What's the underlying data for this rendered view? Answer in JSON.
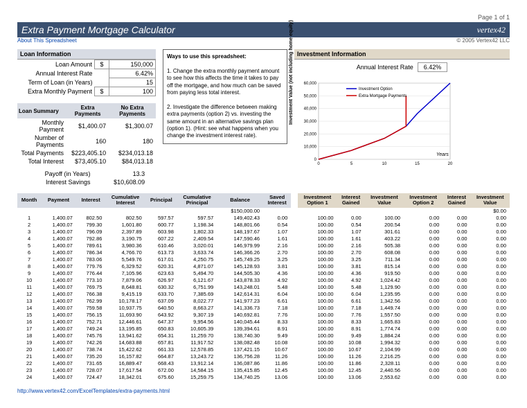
{
  "page_header": {
    "page_num": "Page 1 of 1"
  },
  "title": "Extra Payment Mortgage Calculator",
  "logo_text": "vertex42",
  "sub_link": "About This Spreadsheet",
  "copyright": "© 2005 Vertex42 LLC",
  "loan_info": {
    "header": "Loan Information",
    "rows": [
      {
        "label": "Loan Amount",
        "sym": "$",
        "value": "150,000"
      },
      {
        "label": "Annual Interest Rate",
        "sym": "",
        "value": "6.42%"
      },
      {
        "label": "Term of Loan (in Years)",
        "sym": "",
        "value": "15"
      },
      {
        "label": "Extra Monthly Payment",
        "sym": "$",
        "value": "100"
      }
    ]
  },
  "loan_summary": {
    "header": "Loan Summary",
    "col1": "Extra Payments",
    "col2": "No Extra Payments",
    "rows": [
      {
        "label": "Monthly Payment",
        "v1": "$1,400.07",
        "v2": "$1,300.07"
      },
      {
        "label": "Number of Payments",
        "v1": "160",
        "v2": "180"
      },
      {
        "label": "Total Payments",
        "v1": "$223,405.10",
        "v2": "$234,013.18"
      },
      {
        "label": "Total Interest",
        "v1": "$73,405.10",
        "v2": "$84,013.18"
      }
    ],
    "extra_rows": [
      {
        "label": "Payoff (in Years)",
        "v": "13.3"
      },
      {
        "label": "Interest Savings",
        "v": "$10,608.09"
      }
    ]
  },
  "ways": {
    "header": "Ways to use this spreadsheet:",
    "p1": "1. Change the extra monthly payment amount to see how this affects the time it takes to pay off the mortgage, and how much can be saved from paying less total interest.",
    "p2": "2. Investigate the difference between making extra payments (option 2) vs. investing the same amount in an alternative savings plan (option 1). (Hint: see what happens when you change the investment interest rate)."
  },
  "invest_info": {
    "header": "Investment Information",
    "rate_label": "Annual Interest Rate",
    "rate_value": "6.42%"
  },
  "chart": {
    "ylabel": "Investment Value (not including home equity)",
    "xlabel": "Years",
    "legend1": "Investment Option",
    "legend2": "Extra Mortgage Payments",
    "color1": "#0000cc",
    "color2": "#cc0000",
    "xmax": 20,
    "ymax": 60000,
    "yticks": [
      0,
      10000,
      20000,
      30000,
      40000,
      50000,
      60000
    ],
    "xticks": [
      0,
      5,
      10,
      15,
      20
    ],
    "series1": [
      [
        0,
        0
      ],
      [
        5,
        7000
      ],
      [
        10,
        16500
      ],
      [
        13.3,
        26000
      ],
      [
        15,
        36000
      ],
      [
        20,
        60000
      ]
    ],
    "series2": [
      [
        0,
        0
      ],
      [
        5,
        7000
      ],
      [
        10,
        16500
      ],
      [
        13.3,
        26000
      ],
      [
        13.3,
        50000
      ]
    ]
  },
  "amort": {
    "headers_left": [
      "Month",
      "Payment",
      "Interest",
      "Cumulative Interest",
      "Principal",
      "Cumulative Principal",
      "Balance",
      "Saved Interest"
    ],
    "headers_right": [
      "Investment Option 1",
      "Interest Gained",
      "Investment Value",
      "Investment Option 2",
      "Interest Gained",
      "Investment Value"
    ],
    "starting_balance": "$150,000.00",
    "starting_inv": "$0.00",
    "rows": [
      {
        "m": "1",
        "pay": "1,400.07",
        "int": "802.50",
        "cint": "802.50",
        "prin": "597.57",
        "cprin": "597.57",
        "bal": "149,402.43",
        "sint": "0.00",
        "io1": "100.00",
        "ig1": "0.00",
        "iv1": "100.00",
        "io2": "0.00",
        "ig2": "0.00",
        "iv2": "0.00"
      },
      {
        "m": "2",
        "pay": "1,400.07",
        "int": "799.30",
        "cint": "1,601.80",
        "prin": "600.77",
        "cprin": "1,198.34",
        "bal": "148,801.66",
        "sint": "0.54",
        "io1": "100.00",
        "ig1": "0.54",
        "iv1": "200.54",
        "io2": "0.00",
        "ig2": "0.00",
        "iv2": "0.00"
      },
      {
        "m": "3",
        "pay": "1,400.07",
        "int": "796.09",
        "cint": "2,397.89",
        "prin": "603.98",
        "cprin": "1,802.33",
        "bal": "148,197.67",
        "sint": "1.07",
        "io1": "100.00",
        "ig1": "1.07",
        "iv1": "301.61",
        "io2": "0.00",
        "ig2": "0.00",
        "iv2": "0.00"
      },
      {
        "m": "4",
        "pay": "1,400.07",
        "int": "792.86",
        "cint": "3,190.75",
        "prin": "607.22",
        "cprin": "2,409.54",
        "bal": "147,590.46",
        "sint": "1.61",
        "io1": "100.00",
        "ig1": "1.61",
        "iv1": "403.22",
        "io2": "0.00",
        "ig2": "0.00",
        "iv2": "0.00"
      },
      {
        "m": "5",
        "pay": "1,400.07",
        "int": "789.61",
        "cint": "3,980.36",
        "prin": "610.46",
        "cprin": "3,020.01",
        "bal": "146,979.99",
        "sint": "2.16",
        "io1": "100.00",
        "ig1": "2.16",
        "iv1": "505.38",
        "io2": "0.00",
        "ig2": "0.00",
        "iv2": "0.00"
      },
      {
        "m": "6",
        "pay": "1,400.07",
        "int": "786.34",
        "cint": "4,766.70",
        "prin": "613.73",
        "cprin": "3,633.74",
        "bal": "146,366.26",
        "sint": "2.70",
        "io1": "100.00",
        "ig1": "2.70",
        "iv1": "608.08",
        "io2": "0.00",
        "ig2": "0.00",
        "iv2": "0.00"
      },
      {
        "m": "7",
        "pay": "1,400.07",
        "int": "783.06",
        "cint": "5,549.76",
        "prin": "617.01",
        "cprin": "4,250.75",
        "bal": "145,749.25",
        "sint": "3.25",
        "io1": "100.00",
        "ig1": "3.25",
        "iv1": "711.34",
        "io2": "0.00",
        "ig2": "0.00",
        "iv2": "0.00"
      },
      {
        "m": "8",
        "pay": "1,400.07",
        "int": "779.76",
        "cint": "6,329.52",
        "prin": "620.31",
        "cprin": "4,871.07",
        "bal": "145,128.93",
        "sint": "3.81",
        "io1": "100.00",
        "ig1": "3.81",
        "iv1": "815.14",
        "io2": "0.00",
        "ig2": "0.00",
        "iv2": "0.00"
      },
      {
        "m": "9",
        "pay": "1,400.07",
        "int": "776.44",
        "cint": "7,105.96",
        "prin": "623.63",
        "cprin": "5,494.70",
        "bal": "144,505.30",
        "sint": "4.36",
        "io1": "100.00",
        "ig1": "4.36",
        "iv1": "919.50",
        "io2": "0.00",
        "ig2": "0.00",
        "iv2": "0.00"
      },
      {
        "m": "10",
        "pay": "1,400.07",
        "int": "773.10",
        "cint": "7,879.06",
        "prin": "626.97",
        "cprin": "6,121.67",
        "bal": "143,878.33",
        "sint": "4.92",
        "io1": "100.00",
        "ig1": "4.92",
        "iv1": "1,024.42",
        "io2": "0.00",
        "ig2": "0.00",
        "iv2": "0.00"
      },
      {
        "m": "11",
        "pay": "1,400.07",
        "int": "769.75",
        "cint": "8,648.81",
        "prin": "630.32",
        "cprin": "6,751.99",
        "bal": "143,248.01",
        "sint": "5.48",
        "io1": "100.00",
        "ig1": "5.48",
        "iv1": "1,129.90",
        "io2": "0.00",
        "ig2": "0.00",
        "iv2": "0.00"
      },
      {
        "m": "12",
        "pay": "1,400.07",
        "int": "766.38",
        "cint": "9,415.19",
        "prin": "633.70",
        "cprin": "7,385.69",
        "bal": "142,614.31",
        "sint": "6.04",
        "io1": "100.00",
        "ig1": "6.04",
        "iv1": "1,235.95",
        "io2": "0.00",
        "ig2": "0.00",
        "iv2": "0.00"
      },
      {
        "m": "13",
        "pay": "1,400.07",
        "int": "762.99",
        "cint": "10,178.17",
        "prin": "637.09",
        "cprin": "8,022.77",
        "bal": "141,977.23",
        "sint": "6.61",
        "io1": "100.00",
        "ig1": "6.61",
        "iv1": "1,342.56",
        "io2": "0.00",
        "ig2": "0.00",
        "iv2": "0.00"
      },
      {
        "m": "14",
        "pay": "1,400.07",
        "int": "759.58",
        "cint": "10,937.75",
        "prin": "640.50",
        "cprin": "8,663.27",
        "bal": "141,336.73",
        "sint": "7.18",
        "io1": "100.00",
        "ig1": "7.18",
        "iv1": "1,449.74",
        "io2": "0.00",
        "ig2": "0.00",
        "iv2": "0.00"
      },
      {
        "m": "15",
        "pay": "1,400.07",
        "int": "756.15",
        "cint": "11,693.90",
        "prin": "643.92",
        "cprin": "9,307.19",
        "bal": "140,692.81",
        "sint": "7.76",
        "io1": "100.00",
        "ig1": "7.76",
        "iv1": "1,557.50",
        "io2": "0.00",
        "ig2": "0.00",
        "iv2": "0.00"
      },
      {
        "m": "16",
        "pay": "1,400.07",
        "int": "752.71",
        "cint": "12,446.61",
        "prin": "647.37",
        "cprin": "9,954.56",
        "bal": "140,045.44",
        "sint": "8.33",
        "io1": "100.00",
        "ig1": "8.33",
        "iv1": "1,665.83",
        "io2": "0.00",
        "ig2": "0.00",
        "iv2": "0.00"
      },
      {
        "m": "17",
        "pay": "1,400.07",
        "int": "749.24",
        "cint": "13,195.85",
        "prin": "650.83",
        "cprin": "10,605.39",
        "bal": "139,394.61",
        "sint": "8.91",
        "io1": "100.00",
        "ig1": "8.91",
        "iv1": "1,774.74",
        "io2": "0.00",
        "ig2": "0.00",
        "iv2": "0.00"
      },
      {
        "m": "18",
        "pay": "1,400.07",
        "int": "745.76",
        "cint": "13,941.62",
        "prin": "654.31",
        "cprin": "11,259.70",
        "bal": "138,740.30",
        "sint": "9.49",
        "io1": "100.00",
        "ig1": "9.49",
        "iv1": "1,884.24",
        "io2": "0.00",
        "ig2": "0.00",
        "iv2": "0.00"
      },
      {
        "m": "19",
        "pay": "1,400.07",
        "int": "742.26",
        "cint": "14,683.88",
        "prin": "657.81",
        "cprin": "11,917.52",
        "bal": "138,082.48",
        "sint": "10.08",
        "io1": "100.00",
        "ig1": "10.08",
        "iv1": "1,994.32",
        "io2": "0.00",
        "ig2": "0.00",
        "iv2": "0.00"
      },
      {
        "m": "20",
        "pay": "1,400.07",
        "int": "738.74",
        "cint": "15,422.62",
        "prin": "661.33",
        "cprin": "12,578.85",
        "bal": "137,421.15",
        "sint": "10.67",
        "io1": "100.00",
        "ig1": "10.67",
        "iv1": "2,104.99",
        "io2": "0.00",
        "ig2": "0.00",
        "iv2": "0.00"
      },
      {
        "m": "21",
        "pay": "1,400.07",
        "int": "735.20",
        "cint": "16,157.82",
        "prin": "664.87",
        "cprin": "13,243.72",
        "bal": "136,756.28",
        "sint": "11.26",
        "io1": "100.00",
        "ig1": "11.26",
        "iv1": "2,216.25",
        "io2": "0.00",
        "ig2": "0.00",
        "iv2": "0.00"
      },
      {
        "m": "22",
        "pay": "1,400.07",
        "int": "731.65",
        "cint": "16,889.47",
        "prin": "668.43",
        "cprin": "13,912.14",
        "bal": "136,087.86",
        "sint": "11.86",
        "io1": "100.00",
        "ig1": "11.86",
        "iv1": "2,328.11",
        "io2": "0.00",
        "ig2": "0.00",
        "iv2": "0.00"
      },
      {
        "m": "23",
        "pay": "1,400.07",
        "int": "728.07",
        "cint": "17,617.54",
        "prin": "672.00",
        "cprin": "14,584.15",
        "bal": "135,415.85",
        "sint": "12.45",
        "io1": "100.00",
        "ig1": "12.45",
        "iv1": "2,440.56",
        "io2": "0.00",
        "ig2": "0.00",
        "iv2": "0.00"
      },
      {
        "m": "24",
        "pay": "1,400.07",
        "int": "724.47",
        "cint": "18,342.01",
        "prin": "675.60",
        "cprin": "15,259.75",
        "bal": "134,740.25",
        "sint": "13.06",
        "io1": "100.00",
        "ig1": "13.06",
        "iv1": "2,553.62",
        "io2": "0.00",
        "ig2": "0.00",
        "iv2": "0.00"
      }
    ]
  },
  "footer_url": "http://www.vertex42.com/ExcelTemplates/extra-payments.html"
}
